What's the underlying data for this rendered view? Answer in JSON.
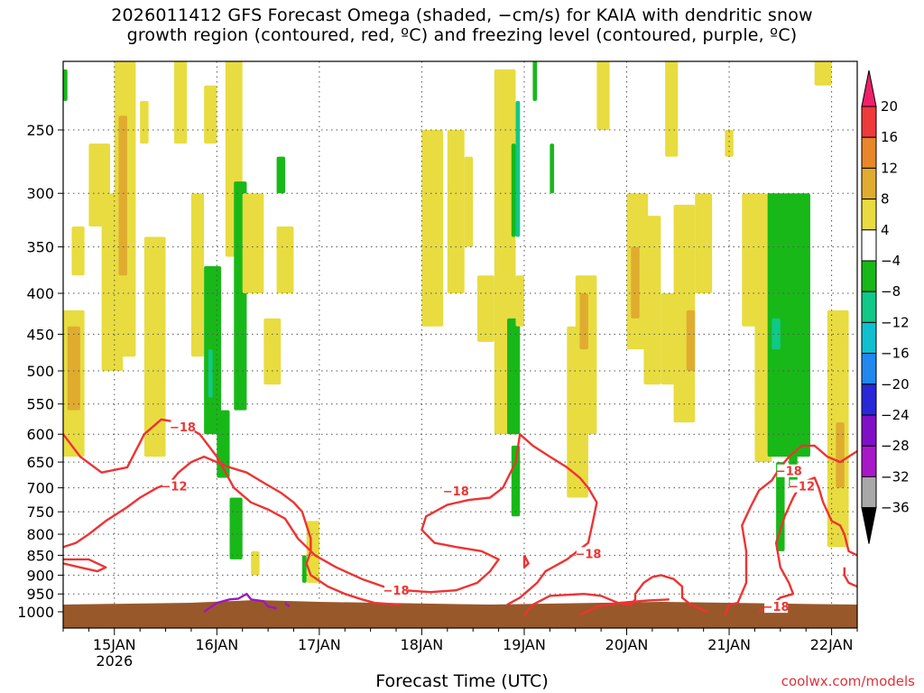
{
  "title": {
    "line1": "2026011412 GFS Forecast Omega (shaded, −cm/s) for KAIA with dendritic snow",
    "line2": "growth region (contoured, red, ºC) and freezing level (contoured, purple, ºC)"
  },
  "credit": "coolwx.com/models",
  "chart_data": {
    "type": "heatmap",
    "title": "2026011412 GFS Forecast Omega (shaded, −cm/s) for KAIA with dendritic snow growth region (contoured, red, ºC) and freezing level (contoured, purple, ºC)",
    "xlabel": "Forecast Time (UTC)",
    "ylabel": "",
    "x_range_hours": [
      0,
      186
    ],
    "x_ticks": [
      {
        "label": "15JAN",
        "sub": "2026",
        "hour": 12
      },
      {
        "label": "16JAN",
        "sub": "",
        "hour": 36
      },
      {
        "label": "17JAN",
        "sub": "",
        "hour": 60
      },
      {
        "label": "18JAN",
        "sub": "",
        "hour": 84
      },
      {
        "label": "19JAN",
        "sub": "",
        "hour": 108
      },
      {
        "label": "20JAN",
        "sub": "",
        "hour": 132
      },
      {
        "label": "21JAN",
        "sub": "",
        "hour": 156
      },
      {
        "label": "22JAN",
        "sub": "",
        "hour": 180
      }
    ],
    "y_scale": "log-pressure",
    "y_range_hPa": [
      1050,
      200
    ],
    "y_ticks": [
      250,
      300,
      350,
      400,
      450,
      500,
      550,
      600,
      650,
      700,
      750,
      800,
      850,
      900,
      950,
      1000
    ],
    "grid": true,
    "colorbar": {
      "labels": [
        "20",
        "16",
        "12",
        "8",
        "4",
        "−4",
        "−8",
        "−12",
        "−16",
        "−20",
        "−24",
        "−28",
        "−32",
        "−36"
      ],
      "colors": [
        "#f0206a",
        "#ee3a3a",
        "#e8862a",
        "#e0ac30",
        "#e8dc40",
        "#ffffff",
        "#18b818",
        "#10c888",
        "#10c0d0",
        "#2088ee",
        "#2828d8",
        "#8010c8",
        "#a818c8",
        "#a8a8a8",
        "#000000"
      ]
    },
    "contours": [
      {
        "label": "−18",
        "color": "#ee3333"
      },
      {
        "label": "−12",
        "color": "#ee3333"
      },
      {
        "label": "0",
        "color": "#9a18c0"
      }
    ],
    "omega_regions": [
      {
        "t0": 0,
        "t1": 1,
        "p0": 210,
        "p1": 230,
        "value": -6
      },
      {
        "t0": 2,
        "t1": 5,
        "p0": 330,
        "p1": 380,
        "value": 5
      },
      {
        "t0": 0,
        "t1": 5,
        "p0": 420,
        "p1": 640,
        "value": 5
      },
      {
        "t0": 1,
        "t1": 4,
        "p0": 440,
        "p1": 560,
        "value": 9
      },
      {
        "t0": 6,
        "t1": 11,
        "p0": 260,
        "p1": 330,
        "value": 5
      },
      {
        "t0": 9,
        "t1": 14,
        "p0": 300,
        "p1": 500,
        "value": 5
      },
      {
        "t0": 12,
        "t1": 17,
        "p0": 200,
        "p1": 480,
        "value": 5
      },
      {
        "t0": 13,
        "t1": 15,
        "p0": 240,
        "p1": 380,
        "value": 9
      },
      {
        "t0": 18,
        "t1": 20,
        "p0": 230,
        "p1": 260,
        "value": 5
      },
      {
        "t0": 19,
        "t1": 24,
        "p0": 340,
        "p1": 640,
        "value": 5
      },
      {
        "t0": 26,
        "t1": 29,
        "p0": 200,
        "p1": 260,
        "value": 5
      },
      {
        "t0": 30,
        "t1": 33,
        "p0": 300,
        "p1": 480,
        "value": 5
      },
      {
        "t0": 33,
        "t1": 36,
        "p0": 220,
        "p1": 260,
        "value": 5
      },
      {
        "t0": 33,
        "t1": 37,
        "p0": 370,
        "p1": 600,
        "value": -6
      },
      {
        "t0": 34,
        "t1": 35,
        "p0": 470,
        "p1": 540,
        "value": -10
      },
      {
        "t0": 36,
        "t1": 39,
        "p0": 560,
        "p1": 680,
        "value": -6
      },
      {
        "t0": 38,
        "t1": 42,
        "p0": 200,
        "p1": 360,
        "value": 5
      },
      {
        "t0": 40,
        "t1": 43,
        "p0": 290,
        "p1": 560,
        "value": -6
      },
      {
        "t0": 42,
        "t1": 47,
        "p0": 300,
        "p1": 400,
        "value": 5
      },
      {
        "t0": 39,
        "t1": 42,
        "p0": 720,
        "p1": 860,
        "value": -6
      },
      {
        "t0": 44,
        "t1": 46,
        "p0": 840,
        "p1": 900,
        "value": 5
      },
      {
        "t0": 47,
        "t1": 51,
        "p0": 430,
        "p1": 520,
        "value": 5
      },
      {
        "t0": 50,
        "t1": 54,
        "p0": 330,
        "p1": 400,
        "value": 5
      },
      {
        "t0": 50,
        "t1": 52,
        "p0": 270,
        "p1": 300,
        "value": -6
      },
      {
        "t0": 57,
        "t1": 60,
        "p0": 770,
        "p1": 920,
        "value": 5
      },
      {
        "t0": 56,
        "t1": 57,
        "p0": 850,
        "p1": 920,
        "value": -6
      },
      {
        "t0": 84,
        "t1": 89,
        "p0": 250,
        "p1": 440,
        "value": 5
      },
      {
        "t0": 90,
        "t1": 94,
        "p0": 250,
        "p1": 400,
        "value": 5
      },
      {
        "t0": 94,
        "t1": 96,
        "p0": 270,
        "p1": 350,
        "value": 5
      },
      {
        "t0": 97,
        "t1": 101,
        "p0": 380,
        "p1": 460,
        "value": 5
      },
      {
        "t0": 101,
        "t1": 106,
        "p0": 210,
        "p1": 600,
        "value": 5
      },
      {
        "t0": 104,
        "t1": 107,
        "p0": 430,
        "p1": 600,
        "value": -6
      },
      {
        "t0": 105,
        "t1": 106,
        "p0": 260,
        "p1": 340,
        "value": -6
      },
      {
        "t0": 106,
        "t1": 107,
        "p0": 230,
        "p1": 340,
        "value": -10
      },
      {
        "t0": 106,
        "t1": 108,
        "p0": 380,
        "p1": 440,
        "value": 5
      },
      {
        "t0": 105,
        "t1": 107,
        "p0": 620,
        "p1": 760,
        "value": -6
      },
      {
        "t0": 110,
        "t1": 111,
        "p0": 200,
        "p1": 230,
        "value": -6
      },
      {
        "t0": 114,
        "t1": 115,
        "p0": 260,
        "p1": 300,
        "value": -6
      },
      {
        "t0": 118,
        "t1": 123,
        "p0": 440,
        "p1": 720,
        "value": 5
      },
      {
        "t0": 120,
        "t1": 125,
        "p0": 380,
        "p1": 600,
        "value": 5
      },
      {
        "t0": 121,
        "t1": 123,
        "p0": 400,
        "p1": 470,
        "value": 9
      },
      {
        "t0": 125,
        "t1": 128,
        "p0": 200,
        "p1": 250,
        "value": 5
      },
      {
        "t0": 132,
        "t1": 137,
        "p0": 300,
        "p1": 470,
        "value": 5
      },
      {
        "t0": 133,
        "t1": 135,
        "p0": 350,
        "p1": 430,
        "value": 9
      },
      {
        "t0": 136,
        "t1": 140,
        "p0": 320,
        "p1": 520,
        "value": 5
      },
      {
        "t0": 140,
        "t1": 144,
        "p0": 400,
        "p1": 520,
        "value": 5
      },
      {
        "t0": 141,
        "t1": 144,
        "p0": 200,
        "p1": 270,
        "value": 5
      },
      {
        "t0": 143,
        "t1": 148,
        "p0": 310,
        "p1": 580,
        "value": 5
      },
      {
        "t0": 146,
        "t1": 148,
        "p0": 420,
        "p1": 500,
        "value": 9
      },
      {
        "t0": 148,
        "t1": 152,
        "p0": 300,
        "p1": 400,
        "value": 5
      },
      {
        "t0": 155,
        "t1": 157,
        "p0": 250,
        "p1": 270,
        "value": 5
      },
      {
        "t0": 159,
        "t1": 163,
        "p0": 300,
        "p1": 440,
        "value": 5
      },
      {
        "t0": 162,
        "t1": 166,
        "p0": 300,
        "p1": 650,
        "value": 5
      },
      {
        "t0": 165,
        "t1": 175,
        "p0": 300,
        "p1": 640,
        "value": -6
      },
      {
        "t0": 166,
        "t1": 168,
        "p0": 430,
        "p1": 470,
        "value": -10
      },
      {
        "t0": 167,
        "t1": 169,
        "p0": 650,
        "p1": 840,
        "value": -6
      },
      {
        "t0": 170,
        "t1": 172,
        "p0": 610,
        "p1": 700,
        "value": -6
      },
      {
        "t0": 176,
        "t1": 180,
        "p0": 200,
        "p1": 220,
        "value": 5
      },
      {
        "t0": 179,
        "t1": 184,
        "p0": 420,
        "p1": 830,
        "value": 5
      },
      {
        "t0": 181,
        "t1": 183,
        "p0": 580,
        "p1": 700,
        "value": 9
      }
    ],
    "contour_lines": [
      {
        "series": "−18",
        "points": [
          [
            0,
            600
          ],
          [
            4,
            640
          ],
          [
            9,
            670
          ],
          [
            15,
            660
          ],
          [
            19,
            600
          ],
          [
            23,
            575
          ],
          [
            27,
            580
          ],
          [
            32,
            600
          ],
          [
            36,
            640
          ],
          [
            40,
            700
          ],
          [
            44,
            730
          ],
          [
            48,
            745
          ],
          [
            52,
            765
          ],
          [
            55,
            810
          ],
          [
            59,
            850
          ],
          [
            64,
            880
          ],
          [
            70,
            910
          ],
          [
            75,
            930
          ],
          [
            80,
            940
          ],
          [
            86,
            945
          ],
          [
            92,
            940
          ],
          [
            97,
            920
          ],
          [
            100,
            890
          ],
          [
            102,
            860
          ],
          [
            98,
            840
          ],
          [
            92,
            830
          ],
          [
            87,
            820
          ],
          [
            84,
            790
          ],
          [
            85,
            760
          ],
          [
            90,
            735
          ],
          [
            95,
            725
          ],
          [
            100,
            720
          ],
          [
            103,
            700
          ],
          [
            106,
            650
          ],
          [
            107,
            600
          ],
          [
            110,
            620
          ],
          [
            114,
            640
          ],
          [
            118,
            660
          ],
          [
            121,
            680
          ],
          [
            123,
            700
          ],
          [
            125,
            730
          ],
          [
            124,
            775
          ],
          [
            123,
            820
          ],
          [
            118,
            860
          ],
          [
            113,
            890
          ],
          [
            111,
            920
          ],
          [
            109,
            940
          ],
          [
            107,
            960
          ],
          [
            104,
            980
          ]
        ]
      },
      {
        "series": "−18",
        "points": [
          [
            108,
            1010
          ],
          [
            110,
            980
          ],
          [
            114,
            955
          ],
          [
            122,
            950
          ],
          [
            126,
            955
          ],
          [
            130,
            975
          ],
          [
            133,
            980
          ],
          [
            134,
            965
          ],
          [
            134,
            950
          ],
          [
            136,
            920
          ],
          [
            138,
            905
          ],
          [
            140,
            900
          ],
          [
            143,
            910
          ],
          [
            145,
            930
          ],
          [
            145,
            960
          ],
          [
            147,
            980
          ],
          [
            151,
            1000
          ]
        ]
      },
      {
        "series": "−18",
        "points": [
          [
            121,
            1010
          ],
          [
            125,
            985
          ],
          [
            130,
            975
          ],
          [
            137,
            968
          ],
          [
            142,
            965
          ]
        ]
      },
      {
        "series": "−18",
        "points": [
          [
            155,
            1010
          ],
          [
            156,
            980
          ],
          [
            158,
            975
          ],
          [
            160,
            920
          ],
          [
            160,
            840
          ],
          [
            159,
            780
          ],
          [
            161,
            740
          ],
          [
            163,
            705
          ],
          [
            166,
            685
          ],
          [
            168,
            660
          ],
          [
            170,
            640
          ],
          [
            173,
            620
          ],
          [
            176,
            620
          ],
          [
            179,
            640
          ],
          [
            182,
            650
          ],
          [
            186,
            630
          ]
        ]
      },
      {
        "series": "−18",
        "points": [
          [
            163,
            1000
          ],
          [
            166,
            980
          ],
          [
            168,
            960
          ],
          [
            171,
            950
          ],
          [
            170,
            920
          ],
          [
            168,
            880
          ],
          [
            167,
            820
          ],
          [
            169,
            760
          ],
          [
            171,
            720
          ],
          [
            173,
            690
          ],
          [
            176,
            680
          ],
          [
            177,
            700
          ],
          [
            178,
            730
          ],
          [
            180,
            770
          ],
          [
            182,
            780
          ],
          [
            183,
            800
          ],
          [
            184,
            840
          ],
          [
            186,
            850
          ]
        ]
      },
      {
        "series": "−18",
        "points": [
          [
            183,
            880
          ],
          [
            183,
            900
          ],
          [
            184,
            920
          ],
          [
            186,
            930
          ]
        ]
      },
      {
        "series": "−12",
        "points": [
          [
            0,
            830
          ],
          [
            3,
            820
          ],
          [
            6,
            800
          ],
          [
            10,
            770
          ],
          [
            15,
            740
          ],
          [
            18,
            720
          ],
          [
            22,
            700
          ],
          [
            25,
            690
          ],
          [
            27,
            670
          ],
          [
            30,
            650
          ],
          [
            33,
            640
          ],
          [
            36,
            650
          ],
          [
            39,
            660
          ],
          [
            43,
            670
          ],
          [
            47,
            690
          ],
          [
            51,
            710
          ],
          [
            54,
            730
          ],
          [
            56,
            750
          ],
          [
            57,
            780
          ],
          [
            58,
            810
          ],
          [
            58,
            840
          ],
          [
            57,
            870
          ],
          [
            58,
            900
          ],
          [
            62,
            930
          ],
          [
            66,
            950
          ],
          [
            70,
            965
          ],
          [
            73,
            975
          ],
          [
            79,
            980
          ]
        ]
      },
      {
        "series": "−12",
        "points": [
          [
            0,
            870
          ],
          [
            4,
            880
          ],
          [
            8,
            890
          ],
          [
            10,
            880
          ],
          [
            6,
            860
          ],
          [
            2,
            860
          ],
          [
            0,
            860
          ]
        ]
      },
      {
        "series": "−12",
        "points": [
          [
            108,
            850
          ],
          [
            108,
            880
          ],
          [
            109,
            870
          ],
          [
            108,
            850
          ]
        ]
      },
      {
        "series": "0",
        "points": [
          [
            33,
            1000
          ],
          [
            36,
            975
          ],
          [
            39,
            965
          ],
          [
            41,
            963
          ],
          [
            43,
            950
          ],
          [
            44,
            965
          ],
          [
            47,
            970
          ],
          [
            48,
            985
          ],
          [
            50,
            990
          ]
        ]
      },
      {
        "series": "0",
        "points": [
          [
            52,
            975
          ],
          [
            53,
            985
          ]
        ]
      }
    ],
    "contour_labels": [
      {
        "label": "−18",
        "t": 28,
        "p": 590
      },
      {
        "label": "−12",
        "t": 26,
        "p": 700
      },
      {
        "label": "−18",
        "t": 92,
        "p": 710
      },
      {
        "label": "−18",
        "t": 123,
        "p": 850
      },
      {
        "label": "−18",
        "t": 78,
        "p": 945
      },
      {
        "label": "−18",
        "t": 167,
        "p": 990
      },
      {
        "label": "−18",
        "t": 170,
        "p": 670
      },
      {
        "label": "−12",
        "t": 173,
        "p": 700
      }
    ],
    "terrain_color": "#99582a"
  }
}
